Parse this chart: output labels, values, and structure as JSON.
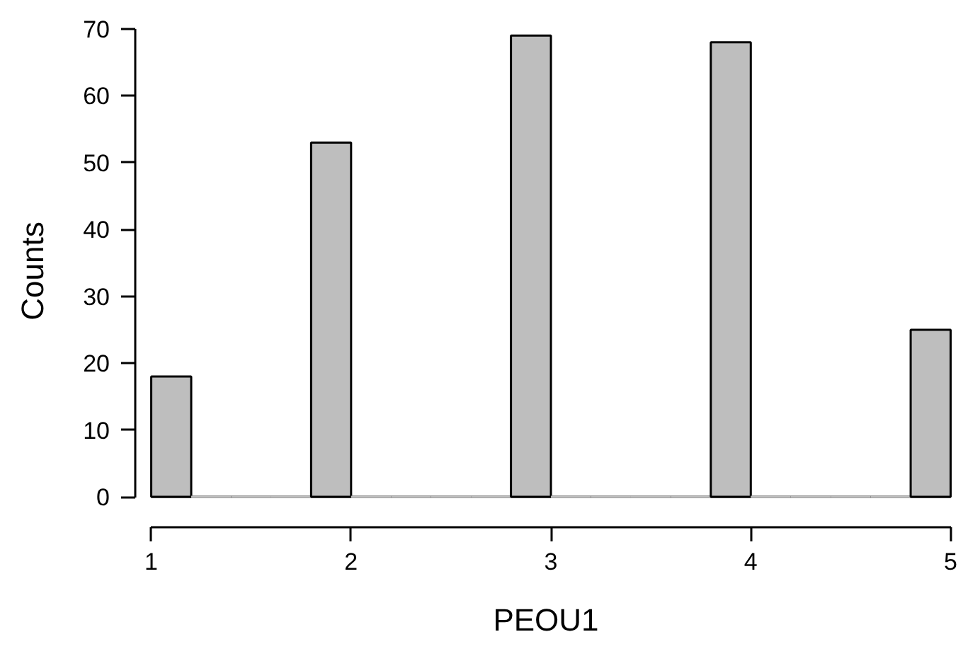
{
  "chart_data": {
    "type": "histogram",
    "xlabel": "PEOU1",
    "ylabel": "Counts",
    "color": "#bebebe",
    "bins": [
      1.0,
      1.2,
      1.4,
      1.6,
      1.8,
      2.0,
      2.2,
      2.4,
      2.6,
      2.8,
      3.0,
      3.2,
      3.4,
      3.6,
      3.8,
      4.0,
      4.2,
      4.4,
      4.6,
      4.8,
      5.0
    ],
    "values": [
      18,
      0,
      0,
      0,
      53,
      0,
      0,
      0,
      0,
      69,
      0,
      0,
      0,
      0,
      68,
      0,
      0,
      0,
      0,
      25
    ],
    "xlim": [
      1,
      5
    ],
    "xticks": [
      1,
      2,
      3,
      4,
      5
    ],
    "ylim": [
      0,
      70
    ],
    "yticks": [
      0,
      10,
      20,
      30,
      40,
      50,
      60,
      70
    ],
    "grid": false
  }
}
